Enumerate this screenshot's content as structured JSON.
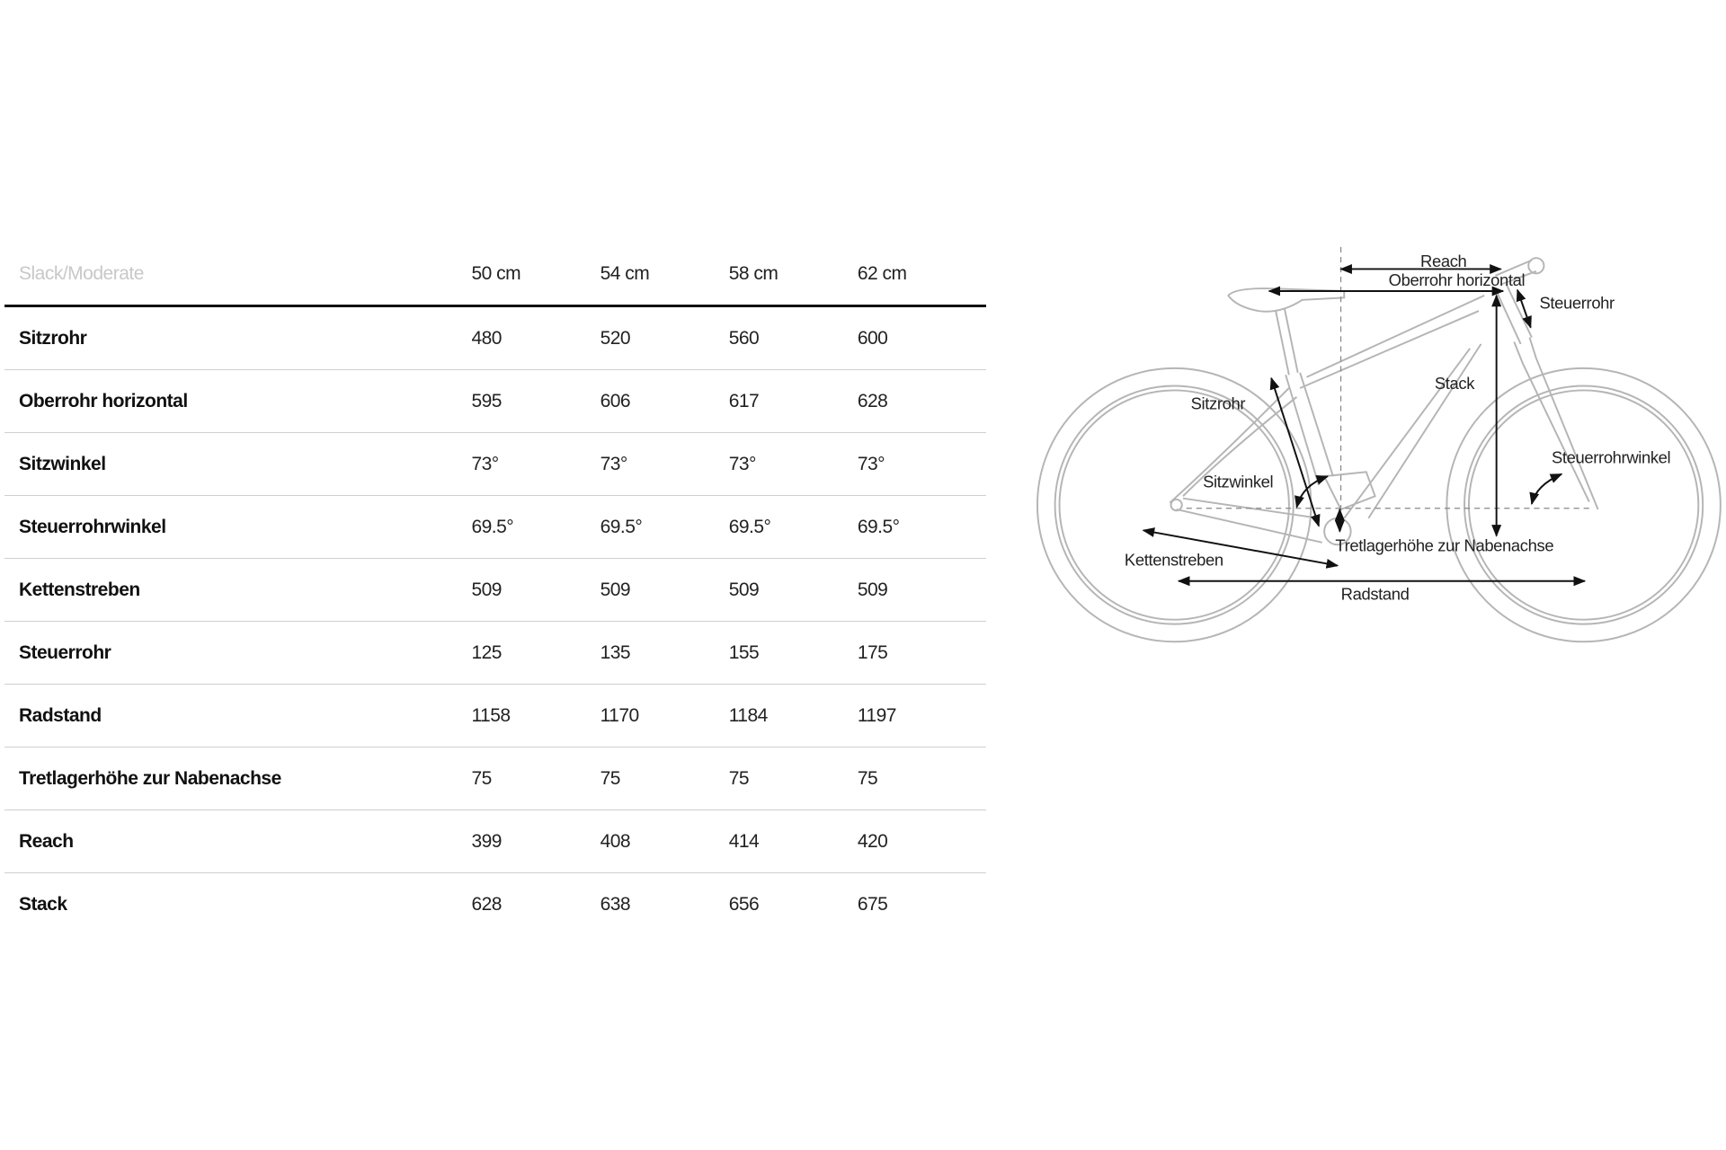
{
  "table": {
    "corner_label": "Slack/Moderate",
    "sizes": [
      "50 cm",
      "54 cm",
      "58 cm",
      "62 cm"
    ],
    "rows": [
      {
        "label": "Sitzrohr",
        "values": [
          "480",
          "520",
          "560",
          "600"
        ]
      },
      {
        "label": "Oberrohr horizontal",
        "values": [
          "595",
          "606",
          "617",
          "628"
        ]
      },
      {
        "label": "Sitzwinkel",
        "values": [
          "73°",
          "73°",
          "73°",
          "73°"
        ]
      },
      {
        "label": "Steuerrohrwinkel",
        "values": [
          "69.5°",
          "69.5°",
          "69.5°",
          "69.5°"
        ]
      },
      {
        "label": "Kettenstreben",
        "values": [
          "509",
          "509",
          "509",
          "509"
        ]
      },
      {
        "label": "Steuerrohr",
        "values": [
          "125",
          "135",
          "155",
          "175"
        ]
      },
      {
        "label": "Radstand",
        "values": [
          "1158",
          "1170",
          "1184",
          "1197"
        ]
      },
      {
        "label": "Tretlagerhöhe zur Nabenachse",
        "values": [
          "75",
          "75",
          "75",
          "75"
        ]
      },
      {
        "label": "Reach",
        "values": [
          "399",
          "408",
          "414",
          "420"
        ]
      },
      {
        "label": "Stack",
        "values": [
          "628",
          "638",
          "656",
          "675"
        ]
      }
    ]
  },
  "diagram": {
    "labels": {
      "reach": "Reach",
      "oberrohr": "Oberrohr horizontal",
      "steuerrohr": "Steuerrohr",
      "stack": "Stack",
      "sitzrohr": "Sitzrohr",
      "sitzwinkel": "Sitzwinkel",
      "steuerrohrwinkel": "Steuerrohrwinkel",
      "tretlager": "Tretlagerhöhe zur Nabenachse",
      "kettenstreben": "Kettenstreben",
      "radstand": "Radstand"
    },
    "colors": {
      "frame": "#b5b5b5",
      "arrows": "#111111"
    }
  }
}
